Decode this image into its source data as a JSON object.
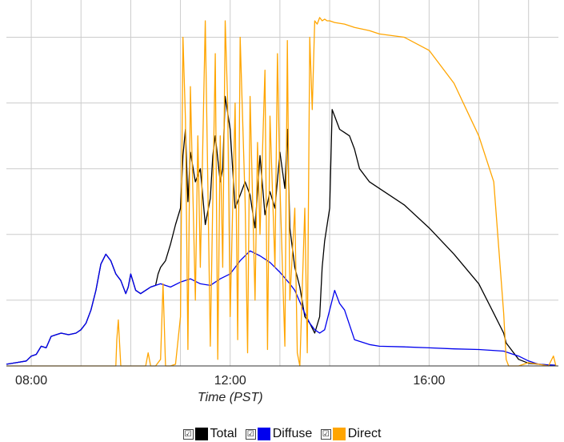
{
  "chart_data": {
    "type": "line",
    "title": "",
    "xlabel": "Time (PST)",
    "ylabel": "",
    "x_unit": "hour",
    "xlim": [
      7.5,
      18.6
    ],
    "ylim": [
      0,
      1050
    ],
    "x_ticks": [
      {
        "value": 8,
        "label": "08:00"
      },
      {
        "value": 12,
        "label": "12:00"
      },
      {
        "value": 16,
        "label": "16:00"
      }
    ],
    "y_gridlines": [
      200,
      400,
      600,
      800,
      1000
    ],
    "grid": true,
    "y_tick_labels_visible": false,
    "legend": {
      "placement": "bottom",
      "checkbox_glyph": "☑"
    },
    "series": [
      {
        "name": "Total",
        "color": "#000000",
        "x": [
          7.5,
          7.7,
          7.9,
          8.0,
          8.1,
          8.2,
          8.3,
          8.4,
          8.5,
          8.6,
          8.75,
          8.9,
          9.0,
          9.1,
          9.2,
          9.3,
          9.4,
          9.5,
          9.6,
          9.7,
          9.8,
          9.9,
          9.95,
          10.0,
          10.1,
          10.2,
          10.3,
          10.4,
          10.5,
          10.55,
          10.6,
          10.7,
          10.8,
          10.9,
          11.0,
          11.05,
          11.1,
          11.15,
          11.2,
          11.3,
          11.4,
          11.5,
          11.6,
          11.65,
          11.7,
          11.8,
          11.85,
          11.9,
          12.0,
          12.1,
          12.2,
          12.3,
          12.4,
          12.5,
          12.6,
          12.7,
          12.8,
          12.9,
          13.0,
          13.1,
          13.15,
          13.2,
          13.3,
          13.4,
          13.5,
          13.6,
          13.7,
          13.8,
          13.85,
          13.9,
          14.0,
          14.05,
          14.1,
          14.2,
          14.3,
          14.4,
          14.5,
          14.6,
          14.8,
          15.0,
          15.5,
          16.0,
          16.5,
          17.0,
          17.3,
          17.5,
          17.55,
          17.6,
          17.8,
          18.0,
          18.2,
          18.4,
          18.55
        ],
        "y": [
          5,
          10,
          15,
          30,
          35,
          60,
          55,
          90,
          95,
          100,
          95,
          100,
          110,
          130,
          170,
          230,
          310,
          340,
          320,
          280,
          260,
          220,
          240,
          280,
          230,
          220,
          230,
          240,
          245,
          280,
          300,
          320,
          370,
          430,
          480,
          640,
          720,
          500,
          650,
          560,
          600,
          430,
          510,
          640,
          700,
          560,
          600,
          820,
          720,
          480,
          520,
          560,
          520,
          420,
          640,
          460,
          530,
          480,
          650,
          540,
          720,
          420,
          300,
          240,
          150,
          130,
          100,
          150,
          300,
          380,
          480,
          780,
          760,
          720,
          710,
          700,
          660,
          600,
          560,
          540,
          490,
          420,
          340,
          250,
          160,
          100,
          70,
          60,
          20,
          8,
          5,
          3,
          2
        ]
      },
      {
        "name": "Diffuse",
        "color": "#0000ee",
        "x": [
          7.5,
          7.7,
          7.9,
          8.0,
          8.1,
          8.2,
          8.3,
          8.4,
          8.5,
          8.6,
          8.75,
          8.9,
          9.0,
          9.1,
          9.2,
          9.3,
          9.4,
          9.5,
          9.6,
          9.7,
          9.8,
          9.9,
          9.95,
          10.0,
          10.1,
          10.2,
          10.3,
          10.4,
          10.5,
          10.6,
          10.8,
          11.0,
          11.2,
          11.4,
          11.6,
          11.8,
          12.0,
          12.2,
          12.4,
          12.6,
          12.8,
          13.0,
          13.2,
          13.3,
          13.4,
          13.5,
          13.6,
          13.7,
          13.8,
          13.9,
          14.0,
          14.1,
          14.2,
          14.3,
          14.5,
          14.8,
          15.0,
          15.5,
          16.0,
          16.5,
          17.0,
          17.5,
          17.6,
          17.8,
          18.0,
          18.2,
          18.4,
          18.55
        ],
        "y": [
          5,
          10,
          15,
          30,
          35,
          60,
          55,
          90,
          95,
          100,
          95,
          100,
          110,
          130,
          170,
          230,
          310,
          340,
          320,
          280,
          260,
          220,
          240,
          280,
          230,
          220,
          230,
          240,
          245,
          250,
          240,
          255,
          265,
          250,
          245,
          265,
          280,
          320,
          350,
          335,
          315,
          285,
          250,
          230,
          195,
          160,
          130,
          110,
          100,
          110,
          170,
          230,
          190,
          170,
          80,
          65,
          60,
          58,
          55,
          52,
          50,
          45,
          40,
          30,
          15,
          5,
          3,
          2
        ]
      },
      {
        "name": "Direct",
        "color": "#ffa500",
        "x": [
          7.5,
          9.0,
          9.5,
          9.7,
          9.72,
          9.75,
          9.8,
          10.0,
          10.2,
          10.3,
          10.35,
          10.4,
          10.5,
          10.6,
          10.65,
          10.7,
          10.8,
          10.9,
          11.0,
          11.05,
          11.1,
          11.15,
          11.2,
          11.3,
          11.35,
          11.4,
          11.5,
          11.55,
          11.6,
          11.7,
          11.75,
          11.8,
          11.85,
          11.9,
          11.95,
          12.0,
          12.1,
          12.15,
          12.2,
          12.3,
          12.35,
          12.4,
          12.5,
          12.55,
          12.6,
          12.7,
          12.75,
          12.8,
          12.9,
          12.95,
          13.0,
          13.1,
          13.15,
          13.2,
          13.3,
          13.35,
          13.4,
          13.5,
          13.55,
          13.6,
          13.65,
          13.7,
          13.75,
          13.8,
          13.85,
          13.9,
          13.95,
          14.0,
          14.1,
          14.3,
          14.5,
          14.8,
          15.0,
          15.5,
          16.0,
          16.5,
          17.0,
          17.3,
          17.5,
          17.55,
          17.6,
          17.8,
          18.0,
          18.2,
          18.4,
          18.5,
          18.55
        ],
        "y": [
          0,
          0,
          0,
          0,
          80,
          140,
          0,
          0,
          0,
          0,
          40,
          0,
          0,
          20,
          250,
          0,
          0,
          5,
          150,
          1000,
          750,
          50,
          850,
          200,
          700,
          300,
          1050,
          550,
          60,
          950,
          20,
          700,
          300,
          1050,
          800,
          150,
          800,
          80,
          1000,
          500,
          40,
          820,
          200,
          680,
          400,
          900,
          50,
          760,
          300,
          950,
          550,
          60,
          990,
          200,
          480,
          40,
          0,
          480,
          40,
          1000,
          780,
          1050,
          1040,
          1060,
          1050,
          1055,
          1050,
          1050,
          1045,
          1040,
          1030,
          1020,
          1010,
          1000,
          960,
          860,
          700,
          560,
          160,
          20,
          0,
          0,
          10,
          5,
          0,
          30,
          0
        ]
      }
    ]
  }
}
